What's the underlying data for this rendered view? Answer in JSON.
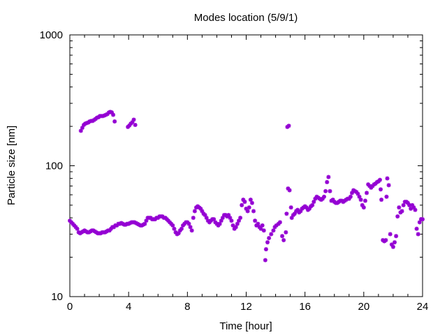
{
  "chart_data": {
    "type": "scatter",
    "title": "Modes location (5/9/1)",
    "xlabel": "Time [hour]",
    "ylabel": "Particle size [nm]",
    "xlim": [
      0,
      24
    ],
    "ylim": [
      10,
      1000
    ],
    "yscale": "log",
    "x_ticks": [
      0,
      4,
      8,
      12,
      16,
      20,
      24
    ],
    "x_tick_labels": [
      "0",
      "4",
      "8",
      "12",
      "16",
      "20",
      "24"
    ],
    "y_ticks": [
      10,
      100,
      1000
    ],
    "y_tick_labels": [
      "10",
      "100",
      "1000"
    ],
    "grid": false,
    "legend": "none",
    "marker_color": "#9400d3",
    "series": [
      {
        "values": [
          [
            0.0,
            38
          ],
          [
            0.1,
            37
          ],
          [
            0.2,
            36
          ],
          [
            0.3,
            35
          ],
          [
            0.4,
            34
          ],
          [
            0.5,
            33
          ],
          [
            0.6,
            31
          ],
          [
            0.7,
            30.5
          ],
          [
            0.8,
            31
          ],
          [
            0.9,
            31.5
          ],
          [
            1.0,
            32
          ],
          [
            1.1,
            31.5
          ],
          [
            1.2,
            31
          ],
          [
            1.3,
            31
          ],
          [
            1.4,
            31.5
          ],
          [
            1.5,
            32
          ],
          [
            1.6,
            32
          ],
          [
            1.7,
            31.5
          ],
          [
            1.8,
            31
          ],
          [
            1.9,
            30.5
          ],
          [
            2.0,
            30.5
          ],
          [
            2.1,
            30.5
          ],
          [
            2.2,
            31
          ],
          [
            2.3,
            31
          ],
          [
            2.4,
            31
          ],
          [
            2.5,
            31.5
          ],
          [
            2.6,
            32
          ],
          [
            2.7,
            32
          ],
          [
            2.8,
            33
          ],
          [
            2.9,
            34
          ],
          [
            3.0,
            34
          ],
          [
            3.1,
            35
          ],
          [
            3.2,
            35
          ],
          [
            3.3,
            36
          ],
          [
            3.4,
            36
          ],
          [
            3.5,
            36.5
          ],
          [
            3.6,
            36
          ],
          [
            3.7,
            35.5
          ],
          [
            3.8,
            35.5
          ],
          [
            3.9,
            36
          ],
          [
            4.0,
            36
          ],
          [
            4.1,
            36.5
          ],
          [
            4.2,
            37
          ],
          [
            4.3,
            37
          ],
          [
            4.4,
            37
          ],
          [
            4.5,
            36.5
          ],
          [
            4.6,
            36
          ],
          [
            4.7,
            35.5
          ],
          [
            4.8,
            35
          ],
          [
            4.9,
            35
          ],
          [
            5.0,
            35.5
          ],
          [
            5.1,
            36
          ],
          [
            5.2,
            38
          ],
          [
            5.3,
            40
          ],
          [
            5.4,
            40
          ],
          [
            5.5,
            40
          ],
          [
            5.6,
            39
          ],
          [
            5.7,
            39
          ],
          [
            5.8,
            39
          ],
          [
            5.9,
            40
          ],
          [
            6.0,
            40
          ],
          [
            6.1,
            41
          ],
          [
            6.2,
            41
          ],
          [
            6.3,
            41
          ],
          [
            6.4,
            40
          ],
          [
            6.5,
            40
          ],
          [
            6.6,
            39
          ],
          [
            6.7,
            38
          ],
          [
            6.8,
            37
          ],
          [
            6.9,
            36
          ],
          [
            7.0,
            35
          ],
          [
            7.1,
            33
          ],
          [
            7.2,
            31
          ],
          [
            7.3,
            30
          ],
          [
            7.4,
            30.5
          ],
          [
            7.5,
            32
          ],
          [
            7.6,
            33
          ],
          [
            7.7,
            35
          ],
          [
            7.8,
            36
          ],
          [
            7.9,
            37
          ],
          [
            8.0,
            37
          ],
          [
            8.1,
            36
          ],
          [
            8.2,
            34
          ],
          [
            8.3,
            32
          ],
          [
            8.4,
            40
          ],
          [
            8.5,
            45
          ],
          [
            8.6,
            48
          ],
          [
            8.7,
            49
          ],
          [
            8.8,
            48
          ],
          [
            8.9,
            47
          ],
          [
            9.0,
            45
          ],
          [
            9.1,
            43
          ],
          [
            9.2,
            42
          ],
          [
            9.3,
            40
          ],
          [
            9.4,
            38
          ],
          [
            9.5,
            37
          ],
          [
            9.6,
            38
          ],
          [
            9.7,
            39
          ],
          [
            9.8,
            39
          ],
          [
            9.9,
            37
          ],
          [
            10.0,
            36
          ],
          [
            10.1,
            35
          ],
          [
            10.2,
            36
          ],
          [
            10.3,
            38
          ],
          [
            10.4,
            40
          ],
          [
            10.5,
            42
          ],
          [
            10.6,
            42
          ],
          [
            10.7,
            41
          ],
          [
            10.8,
            42
          ],
          [
            10.9,
            40
          ],
          [
            11.0,
            38
          ],
          [
            11.1,
            35
          ],
          [
            11.2,
            33
          ],
          [
            11.3,
            34
          ],
          [
            11.4,
            36
          ],
          [
            11.5,
            38
          ],
          [
            11.6,
            40
          ],
          [
            11.7,
            50
          ],
          [
            11.8,
            55
          ],
          [
            11.9,
            53
          ],
          [
            12.0,
            47
          ],
          [
            12.1,
            45
          ],
          [
            12.2,
            48
          ],
          [
            12.3,
            55
          ],
          [
            12.4,
            52
          ],
          [
            12.5,
            45
          ],
          [
            12.6,
            38
          ],
          [
            12.7,
            35
          ],
          [
            12.8,
            36
          ],
          [
            12.9,
            34
          ],
          [
            13.0,
            33
          ],
          [
            13.1,
            35
          ],
          [
            13.2,
            32
          ],
          [
            13.3,
            19
          ],
          [
            13.35,
            23
          ],
          [
            13.45,
            26
          ],
          [
            13.55,
            28
          ],
          [
            13.7,
            30
          ],
          [
            13.85,
            32
          ],
          [
            13.95,
            34
          ],
          [
            14.05,
            35
          ],
          [
            14.2,
            36
          ],
          [
            14.3,
            37
          ],
          [
            14.45,
            29
          ],
          [
            14.55,
            27
          ],
          [
            14.7,
            31
          ],
          [
            14.75,
            43
          ],
          [
            14.85,
            67
          ],
          [
            14.95,
            65
          ],
          [
            15.05,
            48
          ],
          [
            15.1,
            40
          ],
          [
            15.2,
            42
          ],
          [
            15.3,
            43
          ],
          [
            15.4,
            45
          ],
          [
            15.5,
            46
          ],
          [
            15.6,
            44
          ],
          [
            15.7,
            45
          ],
          [
            15.8,
            47
          ],
          [
            15.9,
            48
          ],
          [
            16.0,
            49
          ],
          [
            16.1,
            48
          ],
          [
            16.2,
            46
          ],
          [
            16.3,
            47
          ],
          [
            16.4,
            49
          ],
          [
            16.5,
            50
          ],
          [
            16.6,
            53
          ],
          [
            16.7,
            56
          ],
          [
            16.8,
            58
          ],
          [
            16.9,
            57
          ],
          [
            17.0,
            56
          ],
          [
            17.1,
            55
          ],
          [
            17.2,
            56
          ],
          [
            17.3,
            58
          ],
          [
            17.4,
            64
          ],
          [
            17.5,
            75
          ],
          [
            17.6,
            82
          ],
          [
            17.7,
            64
          ],
          [
            17.8,
            54
          ],
          [
            17.9,
            55
          ],
          [
            18.0,
            53
          ],
          [
            18.1,
            52
          ],
          [
            18.2,
            52
          ],
          [
            18.3,
            53
          ],
          [
            18.4,
            54
          ],
          [
            18.5,
            54
          ],
          [
            18.6,
            53
          ],
          [
            18.7,
            54
          ],
          [
            18.8,
            55
          ],
          [
            18.9,
            56
          ],
          [
            19.0,
            56
          ],
          [
            19.1,
            58
          ],
          [
            19.2,
            62
          ],
          [
            19.3,
            65
          ],
          [
            19.4,
            64
          ],
          [
            19.5,
            63
          ],
          [
            19.6,
            61
          ],
          [
            19.7,
            58
          ],
          [
            19.8,
            55
          ],
          [
            19.9,
            50
          ],
          [
            20.0,
            48
          ],
          [
            20.1,
            54
          ],
          [
            20.2,
            62
          ],
          [
            20.3,
            72
          ],
          [
            20.4,
            70
          ],
          [
            20.5,
            68
          ],
          [
            20.6,
            70
          ],
          [
            20.7,
            72
          ],
          [
            20.8,
            73
          ],
          [
            20.9,
            75
          ],
          [
            21.0,
            76
          ],
          [
            21.1,
            78
          ],
          [
            21.15,
            66
          ],
          [
            21.2,
            55
          ],
          [
            21.3,
            27
          ],
          [
            21.4,
            26.5
          ],
          [
            21.5,
            27
          ],
          [
            21.55,
            58
          ],
          [
            21.6,
            80
          ],
          [
            21.7,
            71
          ],
          [
            21.8,
            30
          ],
          [
            21.9,
            25
          ],
          [
            22.0,
            24
          ],
          [
            22.1,
            26
          ],
          [
            22.2,
            29
          ],
          [
            22.3,
            41
          ],
          [
            22.4,
            48
          ],
          [
            22.5,
            44
          ],
          [
            22.6,
            45
          ],
          [
            22.7,
            50
          ],
          [
            22.8,
            53
          ],
          [
            22.9,
            53
          ],
          [
            23.0,
            52
          ],
          [
            23.1,
            50
          ],
          [
            23.2,
            47
          ],
          [
            23.3,
            50
          ],
          [
            23.4,
            48
          ],
          [
            23.5,
            46
          ],
          [
            23.6,
            33
          ],
          [
            23.7,
            30
          ],
          [
            23.8,
            37
          ],
          [
            23.9,
            39
          ],
          [
            24.0,
            39
          ],
          [
            0.75,
            185
          ],
          [
            0.85,
            195
          ],
          [
            0.95,
            205
          ],
          [
            1.05,
            210
          ],
          [
            1.15,
            212
          ],
          [
            1.25,
            214
          ],
          [
            1.35,
            218
          ],
          [
            1.45,
            220
          ],
          [
            1.55,
            220
          ],
          [
            1.65,
            224
          ],
          [
            1.75,
            228
          ],
          [
            1.85,
            233
          ],
          [
            1.95,
            235
          ],
          [
            2.05,
            240
          ],
          [
            2.15,
            240
          ],
          [
            2.25,
            240
          ],
          [
            2.35,
            242
          ],
          [
            2.45,
            245
          ],
          [
            2.55,
            248
          ],
          [
            2.65,
            255
          ],
          [
            2.75,
            258
          ],
          [
            2.85,
            256
          ],
          [
            2.95,
            245
          ],
          [
            3.05,
            218
          ],
          [
            3.95,
            198
          ],
          [
            4.05,
            203
          ],
          [
            4.15,
            210
          ],
          [
            4.25,
            215
          ],
          [
            4.35,
            225
          ],
          [
            4.45,
            205
          ],
          [
            14.8,
            198
          ],
          [
            14.9,
            202
          ]
        ]
      }
    ]
  }
}
